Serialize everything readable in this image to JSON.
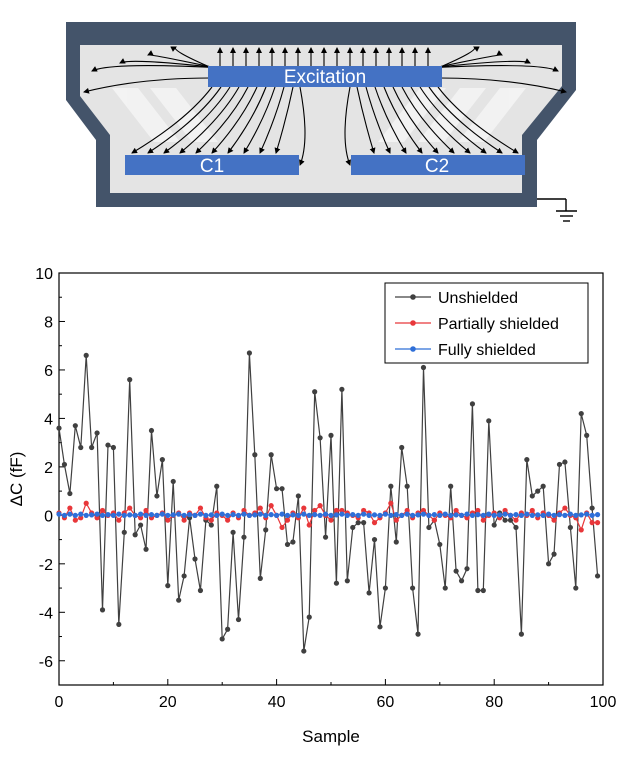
{
  "diagram": {
    "excitation_label": "Excitation",
    "c1_label": "C1",
    "c2_label": "C2",
    "colors": {
      "shield": "#44546a",
      "electrode": "#4472c4",
      "inner_fill": "#e4e4e4",
      "field_line": "#000000"
    },
    "icons": [
      "ground-icon",
      "field-line-arrows"
    ]
  },
  "chart_data": {
    "type": "line",
    "xlabel": "Sample",
    "ylabel": "ΔC (fF)",
    "xlim": [
      0,
      100
    ],
    "ylim": [
      -7,
      10
    ],
    "xticks": [
      0,
      20,
      40,
      60,
      80,
      100
    ],
    "yticks": [
      -6,
      -4,
      -2,
      0,
      2,
      4,
      6,
      8,
      10
    ],
    "grid": false,
    "legend_position": "top-right",
    "series": [
      {
        "name": "Unshielded",
        "color": "#404040",
        "x": [
          0,
          1,
          2,
          3,
          4,
          5,
          6,
          7,
          8,
          9,
          10,
          11,
          12,
          13,
          14,
          15,
          16,
          17,
          18,
          19,
          20,
          21,
          22,
          23,
          24,
          25,
          26,
          27,
          28,
          29,
          30,
          31,
          32,
          33,
          34,
          35,
          36,
          37,
          38,
          39,
          40,
          41,
          42,
          43,
          44,
          45,
          46,
          47,
          48,
          49,
          50,
          51,
          52,
          53,
          54,
          55,
          56,
          57,
          58,
          59,
          60,
          61,
          62,
          63,
          64,
          65,
          66,
          67,
          68,
          69,
          70,
          71,
          72,
          73,
          74,
          75,
          76,
          77,
          78,
          79,
          80,
          81,
          82,
          83,
          84,
          85,
          86,
          87,
          88,
          89,
          90,
          91,
          92,
          93,
          94,
          95,
          96,
          97,
          98,
          99
        ],
        "y": [
          3.6,
          2.1,
          0.9,
          3.7,
          2.8,
          6.6,
          2.8,
          3.4,
          -3.9,
          2.9,
          2.8,
          -4.5,
          -0.7,
          5.6,
          -0.8,
          -0.4,
          -1.4,
          3.5,
          0.8,
          2.3,
          -2.9,
          1.4,
          -3.5,
          -2.5,
          -0.1,
          -1.8,
          -3.1,
          -0.2,
          -0.4,
          1.2,
          -5.1,
          -4.7,
          -0.7,
          -4.3,
          -0.9,
          6.7,
          2.5,
          -2.6,
          -0.6,
          2.5,
          1.1,
          1.1,
          -1.2,
          -1.1,
          0.8,
          -5.6,
          -4.2,
          5.1,
          3.2,
          -0.9,
          3.3,
          -2.8,
          5.2,
          -2.7,
          -0.5,
          -0.3,
          -0.3,
          -3.2,
          -1.0,
          -4.6,
          -3.0,
          1.2,
          -1.1,
          2.8,
          1.2,
          -3.0,
          -4.9,
          6.1,
          -0.5,
          -0.2,
          -1.2,
          -3.0,
          1.2,
          -2.3,
          -2.7,
          -2.2,
          4.6,
          -3.1,
          -3.1,
          3.9,
          -0.4,
          0.1,
          -0.2,
          -0.2,
          -0.5,
          -4.9,
          2.3,
          0.8,
          1.0,
          1.2,
          -2.0,
          -1.6,
          2.1,
          2.2,
          -0.5,
          -3.0,
          4.2,
          3.3,
          0.3,
          -2.5
        ]
      },
      {
        "name": "Partially shielded",
        "color": "#e8373a",
        "x": [
          0,
          1,
          2,
          3,
          4,
          5,
          6,
          7,
          8,
          9,
          10,
          11,
          12,
          13,
          14,
          15,
          16,
          17,
          18,
          19,
          20,
          21,
          22,
          23,
          24,
          25,
          26,
          27,
          28,
          29,
          30,
          31,
          32,
          33,
          34,
          35,
          36,
          37,
          38,
          39,
          40,
          41,
          42,
          43,
          44,
          45,
          46,
          47,
          48,
          49,
          50,
          51,
          52,
          53,
          54,
          55,
          56,
          57,
          58,
          59,
          60,
          61,
          62,
          63,
          64,
          65,
          66,
          67,
          68,
          69,
          70,
          71,
          72,
          73,
          74,
          75,
          76,
          77,
          78,
          79,
          80,
          81,
          82,
          83,
          84,
          85,
          86,
          87,
          88,
          89,
          90,
          91,
          92,
          93,
          94,
          95,
          96,
          97,
          98,
          99
        ],
        "y": [
          0.1,
          -0.1,
          0.3,
          -0.2,
          -0.1,
          0.5,
          0.1,
          -0.1,
          0.2,
          0.0,
          0.1,
          -0.2,
          0.1,
          0.3,
          0.0,
          -0.1,
          0.2,
          -0.1,
          0.0,
          0.1,
          -0.2,
          0.0,
          0.1,
          -0.2,
          0.1,
          0.0,
          0.3,
          -0.1,
          -0.2,
          0.1,
          0.0,
          -0.2,
          0.1,
          -0.1,
          0.2,
          0.0,
          0.1,
          0.3,
          -0.1,
          0.4,
          0.0,
          -0.5,
          -0.2,
          0.1,
          -0.1,
          0.3,
          -0.4,
          0.2,
          0.4,
          0.0,
          -0.2,
          0.2,
          0.2,
          0.1,
          0.0,
          -0.1,
          0.2,
          0.1,
          -0.3,
          -0.1,
          0.1,
          0.5,
          -0.2,
          0.0,
          0.2,
          -0.1,
          0.1,
          0.2,
          0.0,
          -0.2,
          0.1,
          0.0,
          -0.1,
          0.2,
          0.0,
          -0.1,
          0.1,
          0.2,
          -0.2,
          0.0,
          0.1,
          -0.1,
          0.2,
          0.0,
          -0.2,
          0.1,
          0.0,
          0.2,
          -0.1,
          0.1,
          0.0,
          -0.2,
          0.1,
          0.3,
          0.0,
          -0.1,
          -0.6,
          0.1,
          -0.3,
          -0.3
        ]
      },
      {
        "name": "Fully shielded",
        "color": "#2f6fd8",
        "x": [
          0,
          1,
          2,
          3,
          4,
          5,
          6,
          7,
          8,
          9,
          10,
          11,
          12,
          13,
          14,
          15,
          16,
          17,
          18,
          19,
          20,
          21,
          22,
          23,
          24,
          25,
          26,
          27,
          28,
          29,
          30,
          31,
          32,
          33,
          34,
          35,
          36,
          37,
          38,
          39,
          40,
          41,
          42,
          43,
          44,
          45,
          46,
          47,
          48,
          49,
          50,
          51,
          52,
          53,
          54,
          55,
          56,
          57,
          58,
          59,
          60,
          61,
          62,
          63,
          64,
          65,
          66,
          67,
          68,
          69,
          70,
          71,
          72,
          73,
          74,
          75,
          76,
          77,
          78,
          79,
          80,
          81,
          82,
          83,
          84,
          85,
          86,
          87,
          88,
          89,
          90,
          91,
          92,
          93,
          94,
          95,
          96,
          97,
          98,
          99
        ],
        "y": [
          0.05,
          0.0,
          0.05,
          0.0,
          0.05,
          0.0,
          0.02,
          0.05,
          0.0,
          0.03,
          0.0,
          0.05,
          0.0,
          0.02,
          0.0,
          0.05,
          0.0,
          0.03,
          0.0,
          0.05,
          0.0,
          0.02,
          0.05,
          0.0,
          0.03,
          0.0,
          0.05,
          0.0,
          0.02,
          0.0,
          0.05,
          0.0,
          0.03,
          0.0,
          0.05,
          0.0,
          0.02,
          0.05,
          0.0,
          0.03,
          0.0,
          0.05,
          0.0,
          0.02,
          0.0,
          0.05,
          0.0,
          0.03,
          0.0,
          0.05,
          0.0,
          0.02,
          0.05,
          0.0,
          0.03,
          0.0,
          0.05,
          0.0,
          0.02,
          0.0,
          0.05,
          0.0,
          0.03,
          0.0,
          0.05,
          0.0,
          0.02,
          0.05,
          0.0,
          0.03,
          0.0,
          0.05,
          0.0,
          0.02,
          0.0,
          0.05,
          0.0,
          0.03,
          0.0,
          0.05,
          0.0,
          0.02,
          0.05,
          0.0,
          0.03,
          0.0,
          0.05,
          0.0,
          0.02,
          0.0,
          0.05,
          0.0,
          0.03,
          0.0,
          0.05,
          0.0,
          0.02,
          0.05,
          0.0,
          0.03
        ]
      }
    ]
  }
}
